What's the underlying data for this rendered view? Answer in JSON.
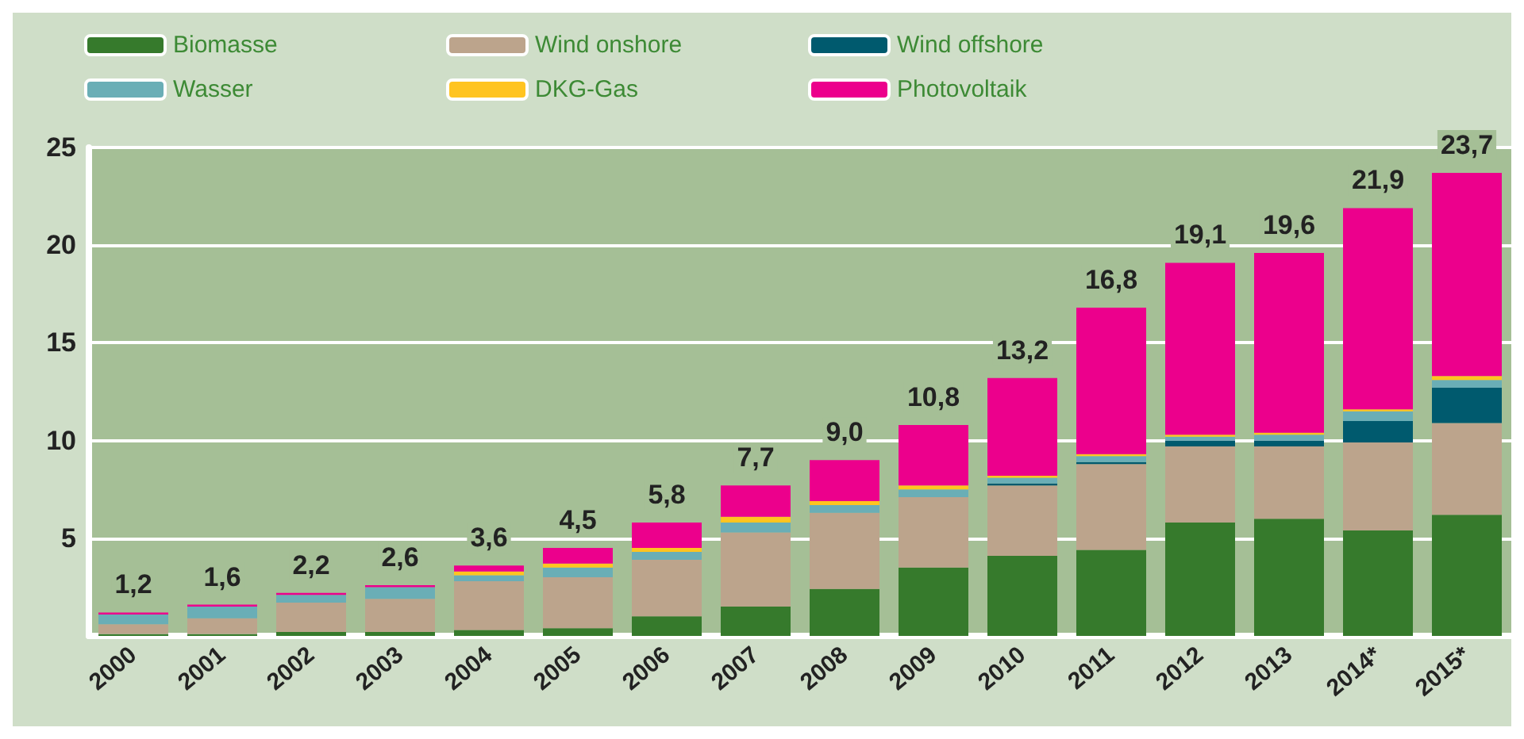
{
  "chart_data": {
    "type": "bar",
    "stacked": true,
    "categories": [
      "2000",
      "2001",
      "2002",
      "2003",
      "2004",
      "2005",
      "2006",
      "2007",
      "2008",
      "2009",
      "2010",
      "2011",
      "2012",
      "2013",
      "2014*",
      "2015*"
    ],
    "series": [
      {
        "name": "Biomasse",
        "color": "#367a2c",
        "values": [
          0.1,
          0.1,
          0.2,
          0.2,
          0.3,
          0.4,
          1.0,
          1.5,
          2.4,
          3.5,
          4.1,
          4.4,
          5.8,
          6.0,
          5.4,
          6.2
        ]
      },
      {
        "name": "Wind onshore",
        "color": "#bca48c",
        "values": [
          0.5,
          0.8,
          1.5,
          1.7,
          2.5,
          2.6,
          2.9,
          3.8,
          3.9,
          3.6,
          3.6,
          4.4,
          3.9,
          3.7,
          4.5,
          4.7
        ]
      },
      {
        "name": "Wind offshore",
        "color": "#005a6e",
        "values": [
          0,
          0,
          0,
          0,
          0,
          0,
          0,
          0,
          0,
          0,
          0.1,
          0.1,
          0.3,
          0.3,
          1.1,
          1.8
        ]
      },
      {
        "name": "Wasser",
        "color": "#6aaeb6",
        "values": [
          0.5,
          0.6,
          0.4,
          0.6,
          0.3,
          0.5,
          0.4,
          0.5,
          0.4,
          0.4,
          0.3,
          0.3,
          0.2,
          0.3,
          0.5,
          0.4
        ]
      },
      {
        "name": "DKG-Gas",
        "color": "#ffc420",
        "values": [
          0,
          0,
          0,
          0,
          0.2,
          0.2,
          0.2,
          0.3,
          0.2,
          0.2,
          0.1,
          0.1,
          0.1,
          0.1,
          0.1,
          0.2
        ]
      },
      {
        "name": "Photovoltaik",
        "color": "#ec008c",
        "values": [
          0.1,
          0.1,
          0.1,
          0.1,
          0.3,
          0.8,
          1.3,
          1.6,
          2.1,
          3.1,
          5.0,
          7.5,
          8.8,
          9.2,
          10.3,
          10.4
        ]
      }
    ],
    "totals": [
      "1,2",
      "1,6",
      "2,2",
      "2,6",
      "3,6",
      "4,5",
      "5,8",
      "7,7",
      "9,0",
      "10,8",
      "13,2",
      "16,8",
      "19,1",
      "19,6",
      "21,9",
      "23,7"
    ],
    "ylim": [
      0,
      25
    ],
    "yticks": [
      5,
      10,
      15,
      20,
      25
    ],
    "grid": "y",
    "legend": "top left"
  }
}
